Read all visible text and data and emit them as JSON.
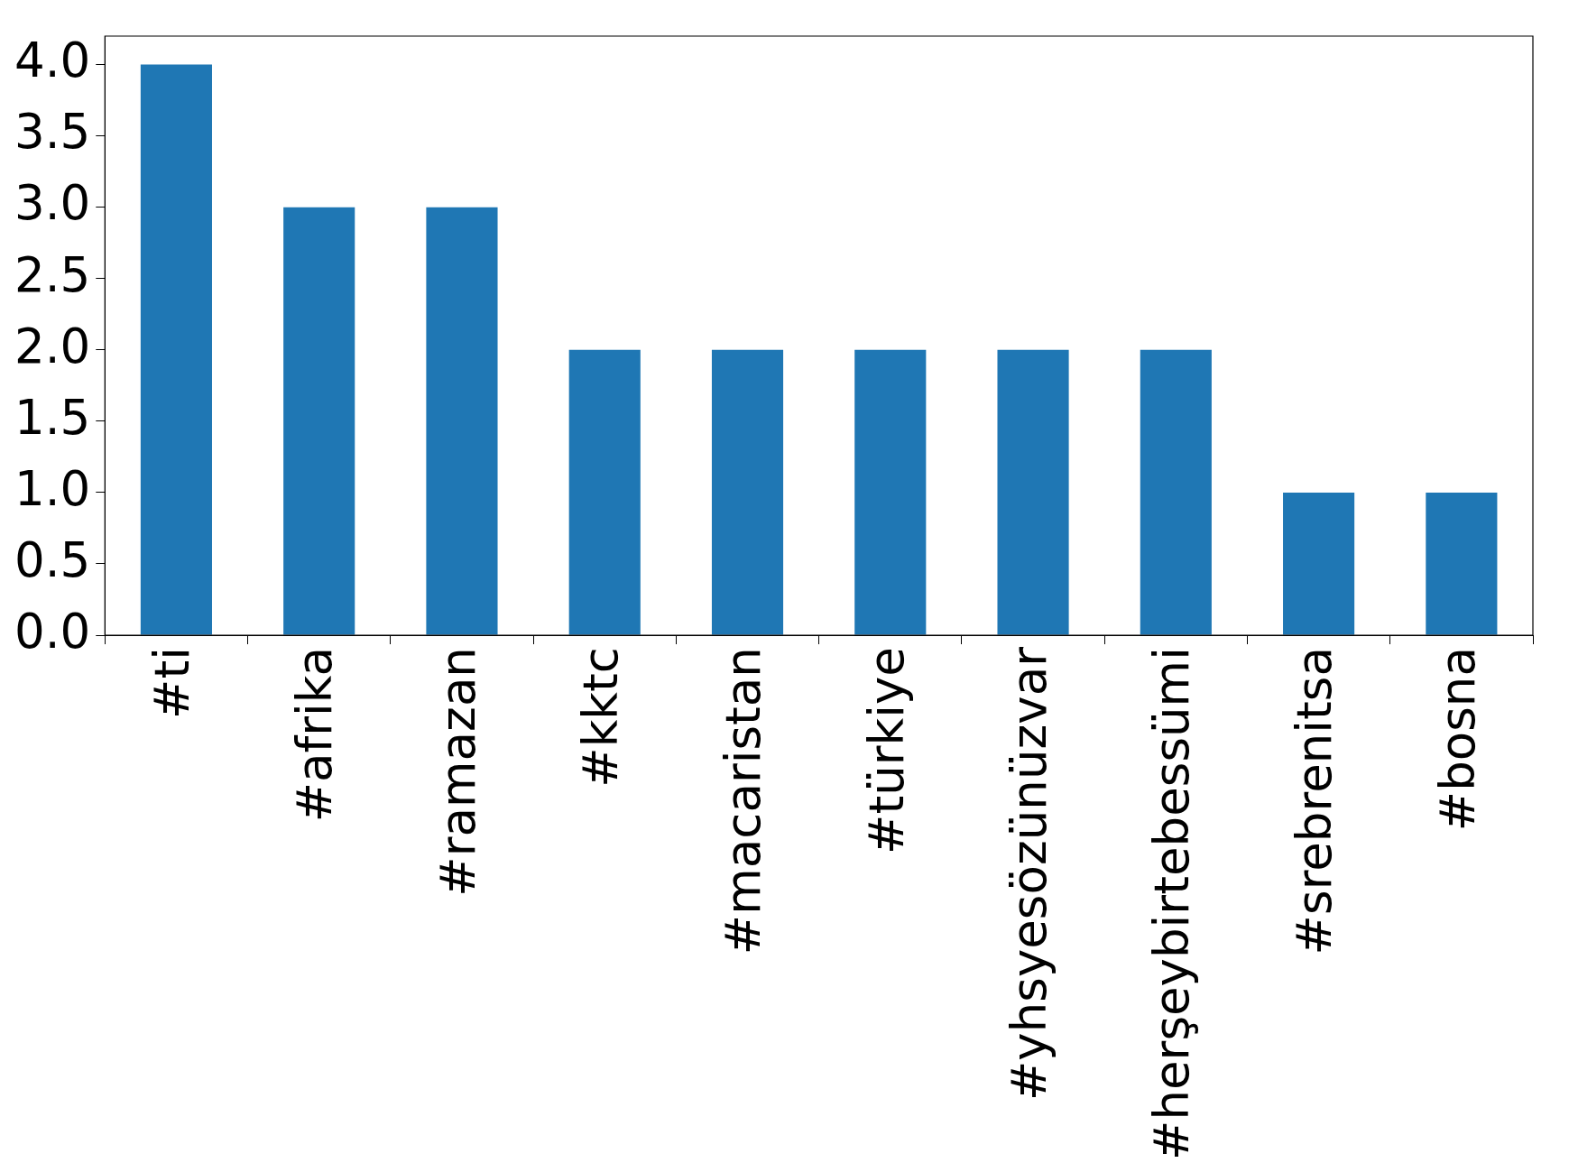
{
  "chart_data": {
    "type": "bar",
    "categories": [
      "#ti",
      "#afrika",
      "#ramazan",
      "#kktc",
      "#macaristan",
      "#türkiye",
      "#yhsyesözünüzvar",
      "#herşeybirtebessümi",
      "#srebrenitsa",
      "#bosna"
    ],
    "values": [
      4,
      3,
      3,
      2,
      2,
      2,
      2,
      2,
      1,
      1
    ],
    "color": "#1f77b4",
    "ylim": [
      0,
      4.2
    ],
    "yticks": [
      {
        "value": 0,
        "label": "0.0"
      },
      {
        "value": 0.5,
        "label": "0.5"
      },
      {
        "value": 1,
        "label": "1.0"
      },
      {
        "value": 1.5,
        "label": "1.5"
      },
      {
        "value": 2,
        "label": "2.0"
      },
      {
        "value": 2.5,
        "label": "2.5"
      },
      {
        "value": 3,
        "label": "3.0"
      },
      {
        "value": 3.5,
        "label": "3.5"
      },
      {
        "value": 4,
        "label": "4.0"
      }
    ],
    "grid": false,
    "legend": false
  }
}
